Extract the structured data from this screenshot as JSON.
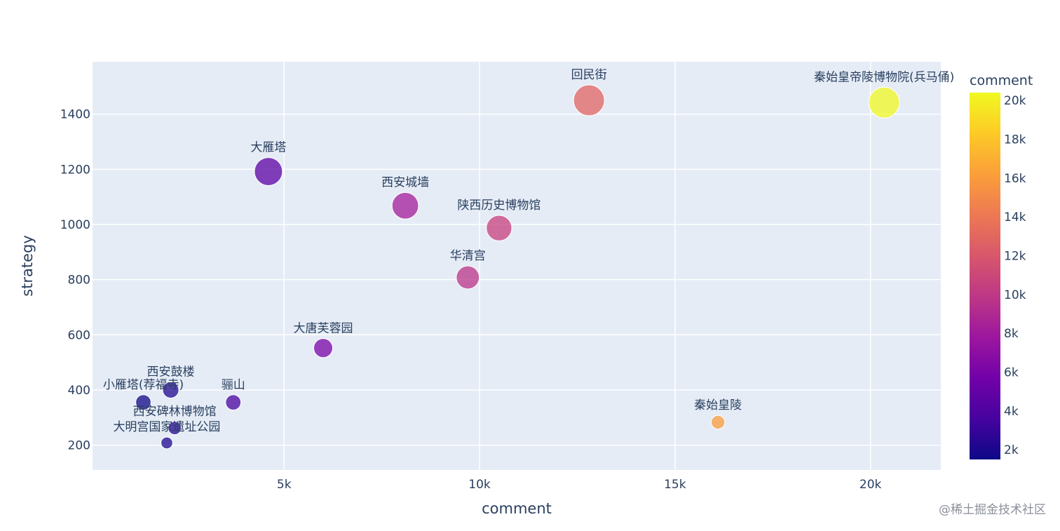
{
  "chart_data": {
    "type": "scatter",
    "xlabel": "comment",
    "ylabel": "strategy",
    "xlim": [
      100,
      21800
    ],
    "ylim": [
      110,
      1590
    ],
    "xticks": [
      5000,
      10000,
      15000,
      20000
    ],
    "xtick_labels": [
      "5k",
      "10k",
      "15k",
      "20k"
    ],
    "yticks": [
      200,
      400,
      600,
      800,
      1000,
      1200,
      1400
    ],
    "ytick_labels": [
      "200",
      "400",
      "600",
      "800",
      "1000",
      "1200",
      "1400"
    ],
    "grid": true,
    "colorbar": {
      "title": "comment",
      "range": [
        1500,
        20400
      ],
      "ticks": [
        2000,
        4000,
        6000,
        8000,
        10000,
        12000,
        14000,
        16000,
        18000,
        20000
      ],
      "tick_labels": [
        "2k",
        "4k",
        "6k",
        "8k",
        "10k",
        "12k",
        "14k",
        "16k",
        "18k",
        "20k"
      ]
    },
    "points": [
      {
        "label": "秦始皇帝陵博物院(兵马俑)",
        "x": 20350,
        "y": 1442
      },
      {
        "label": "回民街",
        "x": 12800,
        "y": 1450
      },
      {
        "label": "大雁塔",
        "x": 4600,
        "y": 1192
      },
      {
        "label": "西安城墙",
        "x": 8100,
        "y": 1068
      },
      {
        "label": "陕西历史博物馆",
        "x": 10500,
        "y": 987
      },
      {
        "label": "华清宫",
        "x": 9700,
        "y": 808
      },
      {
        "label": "大唐芙蓉园",
        "x": 6000,
        "y": 552
      },
      {
        "label": "西安鼓楼",
        "x": 2100,
        "y": 400
      },
      {
        "label": "小雁塔(荐福寺)",
        "x": 1400,
        "y": 355
      },
      {
        "label": "骊山",
        "x": 3700,
        "y": 355
      },
      {
        "label": "西安碑林博物馆",
        "x": 2200,
        "y": 262
      },
      {
        "label": "大明宫国家遗址公园",
        "x": 2000,
        "y": 208
      },
      {
        "label": "秦始皇陵",
        "x": 16100,
        "y": 283
      }
    ]
  },
  "watermark": "@稀土掘金技术社区"
}
